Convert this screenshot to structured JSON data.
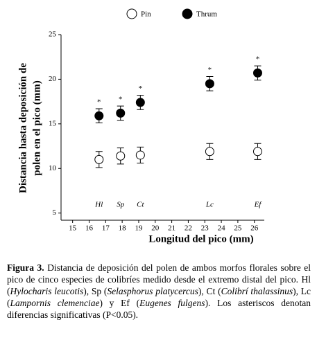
{
  "chart_data": {
    "type": "scatter",
    "x": [
      16.6,
      17.9,
      19.1,
      23.3,
      26.2
    ],
    "labels": [
      "Hl",
      "Sp",
      "Ct",
      "Lc",
      "Ef"
    ],
    "series": [
      {
        "name": "Pin",
        "color": "#ffffff",
        "values": [
          11.0,
          11.4,
          11.5,
          11.9,
          11.9
        ],
        "errors": [
          0.9,
          0.9,
          0.9,
          0.9,
          0.9
        ]
      },
      {
        "name": "Thrum",
        "color": "#000000",
        "values": [
          15.9,
          16.2,
          17.4,
          19.5,
          20.7
        ],
        "errors": [
          0.8,
          0.8,
          0.8,
          0.8,
          0.8
        ]
      }
    ],
    "annotations": [
      "*",
      "*",
      "*",
      "*",
      "*"
    ],
    "xlabel": "Longitud del pico (mm)",
    "ylabel": [
      "Distancia hasta deposición de",
      "polen en el pico (mm)"
    ],
    "xlim": [
      14.3,
      26.6
    ],
    "xticks": [
      15,
      16,
      17,
      18,
      19,
      20,
      21,
      22,
      23,
      24,
      25,
      26
    ],
    "ylim": [
      4.2,
      25
    ],
    "yticks": [
      5,
      10,
      15,
      20,
      25
    ]
  },
  "caption": [
    {
      "text": "Figura 3.",
      "style": "bold"
    },
    {
      "text": " Distancia de deposición del polen de ambos morfos florales sobre el pico de cinco especies de colibríes medido desde el extremo distal del pico. Hl (",
      "style": "normal"
    },
    {
      "text": "Hylocharis leucotis",
      "style": "italic"
    },
    {
      "text": "), Sp (",
      "style": "normal"
    },
    {
      "text": "Selasphorus platycercus",
      "style": "italic"
    },
    {
      "text": "), Ct (",
      "style": "normal"
    },
    {
      "text": "Colibrí thalassinus",
      "style": "italic"
    },
    {
      "text": "), Lc (",
      "style": "normal"
    },
    {
      "text": "Lampornis clemenciae",
      "style": "italic"
    },
    {
      "text": ") y Ef (",
      "style": "normal"
    },
    {
      "text": "Eugenes fulgens",
      "style": "italic"
    },
    {
      "text": "). Los asteriscos denotan diferencias significativas (P<0.05).",
      "style": "normal"
    }
  ]
}
